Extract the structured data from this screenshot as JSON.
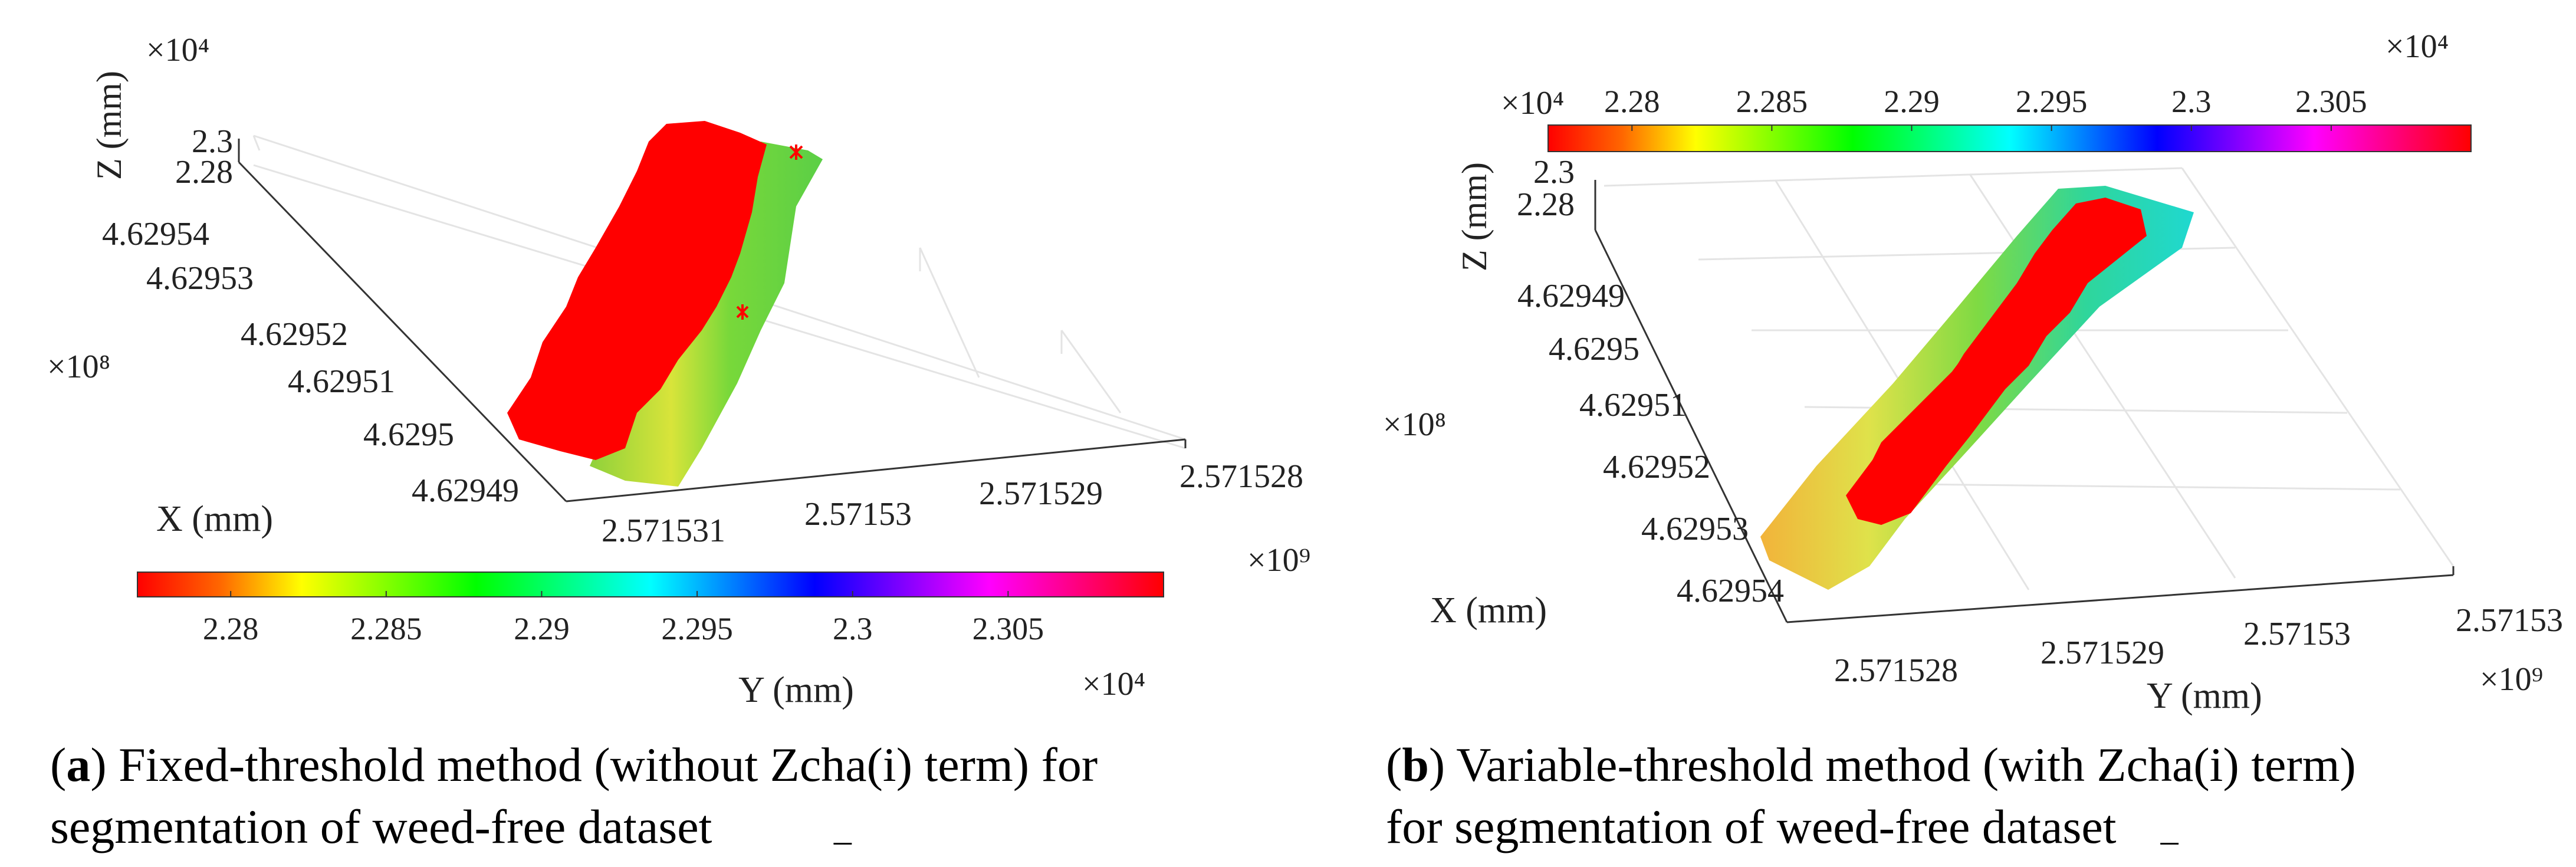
{
  "figure": {
    "panels": [
      {
        "id": "a",
        "caption": {
          "label": "a",
          "open": "(",
          "close": ")",
          "text_1": " Fixed-threshold method (without  Z",
          "text_2": "cha(i)  term) for",
          "text_3": "segmentation of weed-free dataset"
        },
        "colorbar": {
          "min": 22770,
          "max": 23100,
          "ticks": [
            "2.28",
            "2.285",
            "2.29",
            "2.295",
            "2.3",
            "2.305"
          ],
          "exponent": "×10⁴",
          "xlabel": "Y (mm)"
        }
      },
      {
        "id": "b",
        "caption": {
          "label": "b",
          "open": "(",
          "close": ")",
          "text_1": " Variable-threshold method (with  Z",
          "text_2": "cha(i)  term)",
          "text_3": "for segmentation of weed-free dataset"
        },
        "colorbar": {
          "min": 22770,
          "max": 23100,
          "ticks": [
            "2.28",
            "2.285",
            "2.29",
            "2.295",
            "2.3",
            "2.305"
          ],
          "exponent": "×10⁴"
        }
      }
    ]
  },
  "chart_data": [
    {
      "type": "scatter",
      "subtype": "3d-point-cloud",
      "title": "",
      "z_label": "Z (mm)",
      "z_exponent": "×10⁴",
      "z_ticks": [
        "2.3",
        "2.28"
      ],
      "x_label": "X (mm)",
      "x_exponent": "×10⁸",
      "x_ticks": [
        "4.62954",
        "4.62953",
        "4.62952",
        "4.62951",
        "4.6295",
        "4.62949"
      ],
      "y_label": "Y (mm)",
      "y_exponent": "×10⁹",
      "y_ticks": [
        "2.571531",
        "2.57153",
        "2.571529",
        "2.571528"
      ],
      "color_scale": {
        "variable": "Y (mm)",
        "range": [
          22770,
          23100
        ],
        "ticks": [
          "2.28",
          "2.285",
          "2.29",
          "2.295",
          "2.3",
          "2.305"
        ],
        "exponent": "×10⁴",
        "colormap": "hsv"
      },
      "series": [
        {
          "name": "segmented points (red)",
          "color": "#ff0000",
          "marker": "*",
          "approx_fraction": 0.6
        },
        {
          "name": "remaining points",
          "color": "colormap",
          "approx_values_range": [
            22800,
            22900
          ]
        }
      ]
    },
    {
      "type": "scatter",
      "subtype": "3d-point-cloud",
      "title": "",
      "z_label": "Z (mm)",
      "z_exponent": "×10⁴",
      "z_ticks": [
        "2.3",
        "2.28"
      ],
      "x_label": "X (mm)",
      "x_exponent": "×10⁸",
      "x_ticks": [
        "4.62949",
        "4.6295",
        "4.62951",
        "4.62952",
        "4.62953",
        "4.62954"
      ],
      "y_label": "Y (mm)",
      "y_exponent": "×10⁹",
      "y_ticks": [
        "2.571528",
        "2.571529",
        "2.57153",
        "2.57153"
      ],
      "color_scale": {
        "variable": "Z (mm)",
        "range": [
          22770,
          23100
        ],
        "ticks": [
          "2.28",
          "2.285",
          "2.29",
          "2.295",
          "2.3",
          "2.305"
        ],
        "exponent": "×10⁴",
        "colormap": "hsv"
      },
      "series": [
        {
          "name": "segmented points (red)",
          "color": "#ff0000",
          "marker": "*",
          "approx_fraction": 0.3
        },
        {
          "name": "remaining points",
          "color": "colormap",
          "approx_values_range": [
            22800,
            22960
          ]
        }
      ]
    }
  ]
}
